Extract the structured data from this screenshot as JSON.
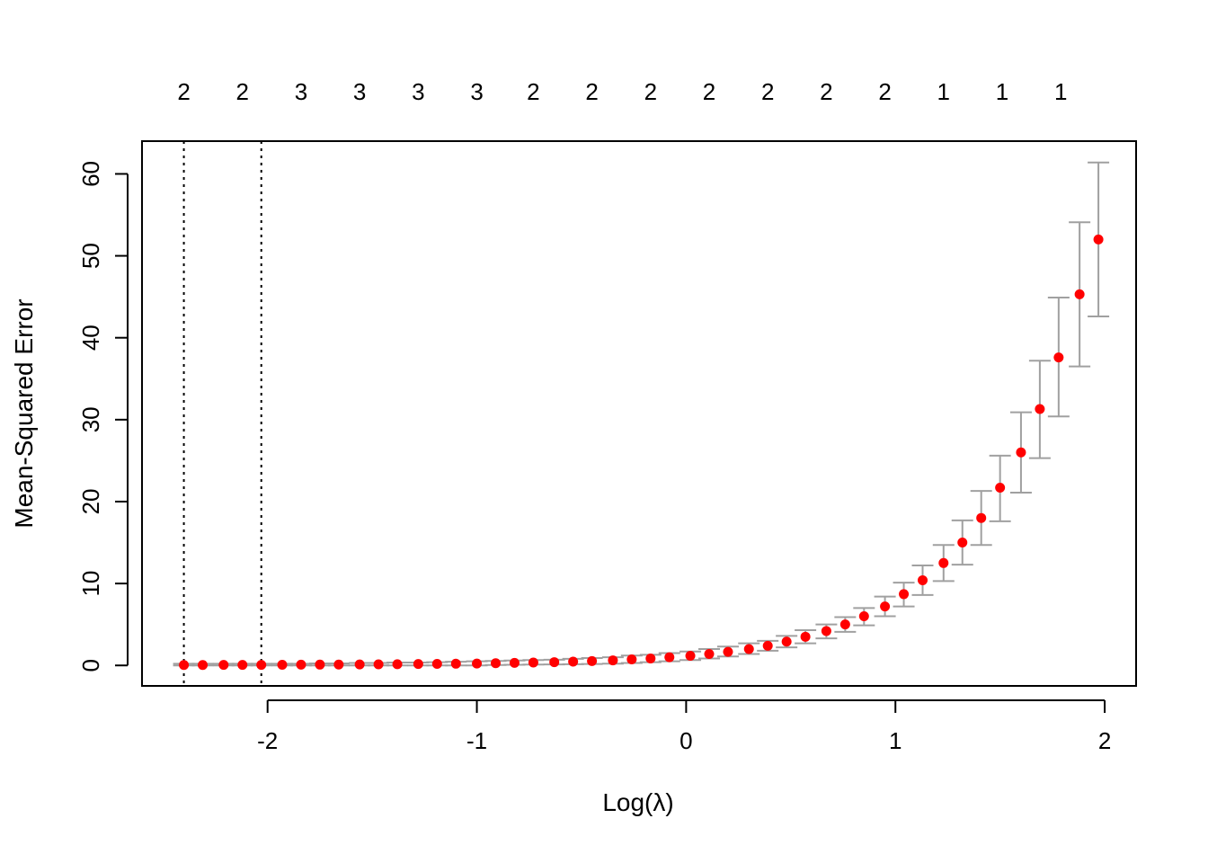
{
  "chart_data": {
    "type": "scatter",
    "xlabel": "Log(λ)",
    "ylabel": "Mean-Squared Error",
    "xlim": [
      -2.6,
      2.15
    ],
    "ylim": [
      -2.5,
      64
    ],
    "x_ticks": [
      -2,
      -1,
      0,
      1,
      2
    ],
    "x_tick_labels": [
      "-2",
      "-1",
      "0",
      "1",
      "2"
    ],
    "y_ticks": [
      0,
      10,
      20,
      30,
      40,
      50,
      60
    ],
    "y_tick_labels": [
      "0",
      "10",
      "20",
      "30",
      "40",
      "50",
      "60"
    ],
    "top_axis": {
      "x": [
        -2.4,
        -2.12,
        -1.84,
        -1.56,
        -1.28,
        -1.0,
        -0.73,
        -0.45,
        -0.17,
        0.11,
        0.39,
        0.67,
        0.95,
        1.23,
        1.51,
        1.79
      ],
      "labels": [
        "2",
        "2",
        "3",
        "3",
        "3",
        "3",
        "2",
        "2",
        "2",
        "2",
        "2",
        "2",
        "2",
        "1",
        "1",
        "1"
      ]
    },
    "vlines": [
      -2.4,
      -2.03
    ],
    "grid": false,
    "legend": "none",
    "series": [
      {
        "x": [
          -2.4,
          -2.31,
          -2.21,
          -2.12,
          -2.03,
          -1.93,
          -1.84,
          -1.75,
          -1.66,
          -1.56,
          -1.47,
          -1.38,
          -1.28,
          -1.19,
          -1.1,
          -1.0,
          -0.91,
          -0.82,
          -0.73,
          -0.63,
          -0.54,
          -0.45,
          -0.35,
          -0.26,
          -0.17,
          -0.08,
          0.02,
          0.11,
          0.2,
          0.3,
          0.39,
          0.48,
          0.57,
          0.67,
          0.76,
          0.85,
          0.95,
          1.04,
          1.13,
          1.23,
          1.32,
          1.41,
          1.5,
          1.6,
          1.69,
          1.78,
          1.88,
          1.97
        ],
        "y": [
          0.05,
          0.05,
          0.06,
          0.06,
          0.07,
          0.08,
          0.09,
          0.1,
          0.11,
          0.12,
          0.13,
          0.15,
          0.17,
          0.19,
          0.21,
          0.23,
          0.27,
          0.31,
          0.35,
          0.4,
          0.46,
          0.53,
          0.62,
          0.74,
          0.85,
          1.0,
          1.18,
          1.4,
          1.66,
          2.0,
          2.4,
          2.9,
          3.5,
          4.2,
          5.0,
          6.0,
          7.2,
          8.7,
          10.4,
          12.5,
          15.0,
          18.0,
          21.7,
          26.0,
          31.3,
          37.6,
          45.3,
          52.0
        ],
        "y_lower": [
          0.0,
          0.0,
          0.0,
          0.0,
          0.0,
          0.0,
          0.0,
          0.0,
          0.0,
          0.0,
          0.0,
          0.0,
          0.0,
          0.0,
          0.0,
          0.0,
          0.05,
          0.08,
          0.1,
          0.12,
          0.15,
          0.18,
          0.22,
          0.3,
          0.4,
          0.5,
          0.65,
          0.85,
          1.1,
          1.4,
          1.8,
          2.2,
          2.7,
          3.3,
          4.1,
          4.9,
          6.0,
          7.2,
          8.6,
          10.3,
          12.3,
          14.7,
          17.6,
          21.1,
          25.3,
          30.4,
          36.5,
          42.6
        ],
        "y_upper": [
          0.2,
          0.2,
          0.2,
          0.2,
          0.2,
          0.2,
          0.2,
          0.25,
          0.25,
          0.3,
          0.3,
          0.35,
          0.35,
          0.4,
          0.45,
          0.5,
          0.55,
          0.6,
          0.65,
          0.7,
          0.8,
          0.9,
          1.0,
          1.2,
          1.3,
          1.5,
          1.7,
          2.0,
          2.3,
          2.7,
          3.0,
          3.6,
          4.3,
          5.0,
          5.9,
          7.0,
          8.4,
          10.1,
          12.2,
          14.7,
          17.7,
          21.3,
          25.6,
          30.9,
          37.2,
          44.9,
          54.1,
          61.4
        ]
      }
    ],
    "colors": {
      "points": "#ff0000",
      "error_bars": "#a0a0a0",
      "axis": "#000000",
      "vlines": "#000000"
    }
  }
}
